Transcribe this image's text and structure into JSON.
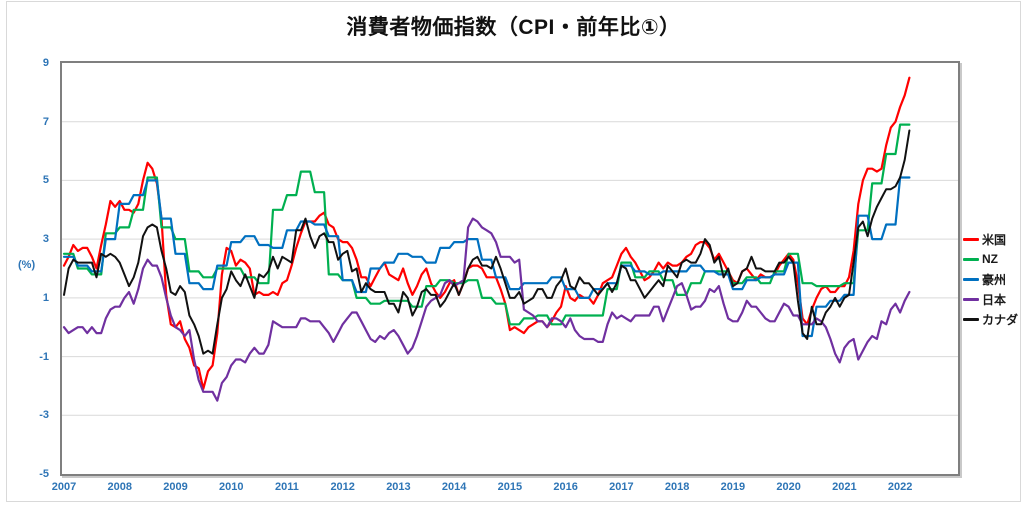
{
  "chart_data": {
    "type": "line",
    "title": "消費者物価指数（CPI・前年比①）",
    "ylabel": "(%)",
    "xlabel": "",
    "ylim": [
      -5,
      9
    ],
    "yticks": [
      9,
      7,
      5,
      3,
      1,
      -1,
      -3,
      -5
    ],
    "x_tick_years": [
      "2007",
      "2008",
      "2009",
      "2010",
      "2011",
      "2012",
      "2013",
      "2014",
      "2015",
      "2016",
      "2017",
      "2018",
      "2019",
      "2020",
      "2021",
      "2022"
    ],
    "x_range": "Jan 2007 - Mar 2022, one value per month (183 points per series)",
    "grid": true,
    "legend_position": "right",
    "axis_text_color": "#2e75b6",
    "gridline_color": "#d9d9d9",
    "plot_border_color": "#7f7f7f",
    "series": [
      {
        "name": "米国",
        "color": "#ff0000",
        "frequency": "monthly",
        "values": [
          2.1,
          2.4,
          2.8,
          2.6,
          2.7,
          2.7,
          2.4,
          2.0,
          2.8,
          3.5,
          4.3,
          4.1,
          4.3,
          4.0,
          4.0,
          3.9,
          4.2,
          5.0,
          5.6,
          5.4,
          4.9,
          3.7,
          1.1,
          0.1,
          0.0,
          0.2,
          -0.4,
          -0.7,
          -1.3,
          -1.4,
          -2.1,
          -1.5,
          -1.3,
          -0.2,
          1.8,
          2.7,
          2.6,
          2.1,
          2.3,
          2.2,
          2.0,
          1.1,
          1.2,
          1.1,
          1.1,
          1.2,
          1.1,
          1.5,
          1.6,
          2.1,
          2.7,
          3.2,
          3.6,
          3.6,
          3.6,
          3.8,
          3.9,
          3.5,
          3.4,
          3.0,
          2.9,
          2.9,
          2.7,
          2.3,
          1.7,
          1.7,
          1.4,
          1.7,
          2.0,
          2.2,
          1.8,
          1.7,
          1.6,
          2.0,
          1.5,
          1.1,
          1.4,
          1.8,
          2.0,
          1.5,
          1.2,
          1.0,
          1.2,
          1.5,
          1.6,
          1.1,
          1.5,
          2.0,
          2.1,
          2.1,
          2.0,
          1.7,
          1.7,
          1.7,
          1.3,
          0.8,
          -0.1,
          0.0,
          -0.1,
          -0.2,
          0.0,
          0.1,
          0.2,
          0.2,
          0.0,
          0.2,
          0.5,
          0.7,
          1.4,
          1.0,
          0.9,
          1.1,
          1.0,
          1.0,
          0.8,
          1.1,
          1.5,
          1.6,
          1.7,
          2.1,
          2.5,
          2.7,
          2.4,
          2.2,
          1.9,
          1.6,
          1.7,
          1.9,
          2.2,
          2.0,
          2.2,
          2.1,
          2.1,
          2.2,
          2.4,
          2.5,
          2.8,
          2.9,
          2.9,
          2.7,
          2.3,
          2.5,
          2.2,
          1.9,
          1.6,
          1.5,
          1.9,
          2.0,
          1.8,
          1.6,
          1.8,
          1.7,
          1.7,
          1.8,
          2.1,
          2.3,
          2.5,
          2.3,
          1.5,
          0.3,
          0.1,
          0.6,
          1.0,
          1.3,
          1.4,
          1.2,
          1.2,
          1.4,
          1.4,
          1.7,
          2.6,
          4.2,
          5.0,
          5.4,
          5.4,
          5.3,
          5.4,
          6.2,
          6.8,
          7.0,
          7.5,
          7.9,
          8.5
        ]
      },
      {
        "name": "NZ",
        "color": "#00b050",
        "frequency": "quarterly (each quarter value repeated for its 3 months)",
        "values": [
          2.5,
          2.5,
          2.5,
          2.0,
          2.0,
          2.0,
          1.8,
          1.8,
          1.8,
          3.2,
          3.2,
          3.2,
          3.4,
          3.4,
          3.4,
          4.0,
          4.0,
          4.0,
          5.1,
          5.1,
          5.1,
          3.4,
          3.4,
          3.4,
          3.0,
          3.0,
          3.0,
          1.9,
          1.9,
          1.9,
          1.7,
          1.7,
          1.7,
          2.0,
          2.0,
          2.0,
          2.0,
          2.0,
          2.0,
          1.7,
          1.7,
          1.7,
          1.5,
          1.5,
          1.5,
          4.0,
          4.0,
          4.0,
          4.5,
          4.5,
          4.5,
          5.3,
          5.3,
          5.3,
          4.6,
          4.6,
          4.6,
          1.8,
          1.8,
          1.8,
          1.6,
          1.6,
          1.6,
          1.0,
          1.0,
          1.0,
          0.8,
          0.8,
          0.8,
          0.9,
          0.9,
          0.9,
          0.9,
          0.9,
          0.9,
          0.7,
          0.7,
          0.7,
          1.4,
          1.4,
          1.4,
          1.6,
          1.6,
          1.6,
          1.5,
          1.5,
          1.5,
          1.6,
          1.6,
          1.6,
          1.0,
          1.0,
          1.0,
          0.8,
          0.8,
          0.8,
          0.1,
          0.1,
          0.1,
          0.3,
          0.3,
          0.3,
          0.4,
          0.4,
          0.4,
          0.1,
          0.1,
          0.1,
          0.4,
          0.4,
          0.4,
          0.4,
          0.4,
          0.4,
          0.4,
          0.4,
          0.4,
          1.3,
          1.3,
          1.3,
          2.2,
          2.2,
          2.2,
          1.7,
          1.7,
          1.7,
          1.9,
          1.9,
          1.9,
          1.6,
          1.6,
          1.6,
          1.1,
          1.1,
          1.1,
          1.5,
          1.5,
          1.5,
          1.9,
          1.9,
          1.9,
          1.9,
          1.9,
          1.9,
          1.5,
          1.5,
          1.5,
          1.7,
          1.7,
          1.7,
          1.5,
          1.5,
          1.5,
          1.9,
          1.9,
          1.9,
          2.5,
          2.5,
          2.5,
          1.5,
          1.5,
          1.5,
          1.4,
          1.4,
          1.4,
          1.4,
          1.4,
          1.4,
          1.5,
          1.5,
          1.5,
          3.3,
          3.3,
          3.3,
          4.9,
          4.9,
          4.9,
          5.9,
          5.9,
          5.9,
          6.9,
          6.9,
          6.9
        ]
      },
      {
        "name": "豪州",
        "color": "#0070c0",
        "frequency": "quarterly (each quarter value repeated for its 3 months)",
        "values": [
          2.4,
          2.4,
          2.4,
          2.1,
          2.1,
          2.1,
          1.9,
          1.9,
          1.9,
          3.0,
          3.0,
          3.0,
          4.2,
          4.2,
          4.2,
          4.5,
          4.5,
          4.5,
          5.0,
          5.0,
          5.0,
          3.7,
          3.7,
          3.7,
          2.5,
          2.5,
          2.5,
          1.5,
          1.5,
          1.5,
          1.3,
          1.3,
          1.3,
          2.1,
          2.1,
          2.1,
          2.9,
          2.9,
          2.9,
          3.1,
          3.1,
          3.1,
          2.8,
          2.8,
          2.8,
          2.7,
          2.7,
          2.7,
          3.3,
          3.3,
          3.3,
          3.6,
          3.6,
          3.6,
          3.5,
          3.5,
          3.5,
          3.1,
          3.1,
          3.1,
          1.6,
          1.6,
          1.6,
          1.2,
          1.2,
          1.2,
          2.0,
          2.0,
          2.0,
          2.2,
          2.2,
          2.2,
          2.5,
          2.5,
          2.5,
          2.4,
          2.4,
          2.4,
          2.2,
          2.2,
          2.2,
          2.7,
          2.7,
          2.7,
          2.9,
          2.9,
          2.9,
          3.0,
          3.0,
          3.0,
          2.3,
          2.3,
          2.3,
          1.7,
          1.7,
          1.7,
          1.3,
          1.3,
          1.3,
          1.5,
          1.5,
          1.5,
          1.5,
          1.5,
          1.5,
          1.7,
          1.7,
          1.7,
          1.3,
          1.3,
          1.3,
          1.0,
          1.0,
          1.0,
          1.3,
          1.3,
          1.3,
          1.5,
          1.5,
          1.5,
          2.1,
          2.1,
          2.1,
          1.9,
          1.9,
          1.9,
          1.8,
          1.8,
          1.8,
          1.9,
          1.9,
          1.9,
          1.9,
          1.9,
          1.9,
          2.1,
          2.1,
          2.1,
          1.9,
          1.9,
          1.9,
          1.8,
          1.8,
          1.8,
          1.3,
          1.3,
          1.3,
          1.6,
          1.6,
          1.6,
          1.7,
          1.7,
          1.7,
          1.8,
          1.8,
          1.8,
          2.2,
          2.2,
          2.2,
          -0.3,
          -0.3,
          -0.3,
          0.7,
          0.7,
          0.7,
          0.9,
          0.9,
          0.9,
          1.1,
          1.1,
          1.1,
          3.8,
          3.8,
          3.8,
          3.0,
          3.0,
          3.0,
          3.5,
          3.5,
          3.5,
          5.1,
          5.1,
          5.1
        ]
      },
      {
        "name": "日本",
        "color": "#7030a0",
        "frequency": "monthly",
        "values": [
          0.0,
          -0.2,
          -0.1,
          0.0,
          0.0,
          -0.2,
          0.0,
          -0.2,
          -0.2,
          0.3,
          0.6,
          0.7,
          0.7,
          1.0,
          1.2,
          0.8,
          1.3,
          2.0,
          2.3,
          2.1,
          2.1,
          1.7,
          1.0,
          0.4,
          0.0,
          -0.1,
          -0.3,
          -0.1,
          -1.1,
          -1.8,
          -2.2,
          -2.2,
          -2.2,
          -2.5,
          -1.9,
          -1.7,
          -1.3,
          -1.1,
          -1.1,
          -1.2,
          -0.9,
          -0.7,
          -0.9,
          -0.9,
          -0.6,
          0.2,
          0.1,
          0.0,
          0.0,
          0.0,
          0.0,
          0.3,
          0.3,
          0.2,
          0.2,
          0.2,
          0.0,
          -0.2,
          -0.5,
          -0.2,
          0.1,
          0.3,
          0.5,
          0.5,
          0.2,
          -0.1,
          -0.4,
          -0.5,
          -0.3,
          -0.4,
          -0.2,
          -0.1,
          -0.3,
          -0.6,
          -0.9,
          -0.7,
          -0.3,
          0.2,
          0.7,
          0.9,
          1.0,
          1.1,
          1.5,
          1.6,
          1.4,
          1.5,
          1.6,
          3.4,
          3.7,
          3.6,
          3.4,
          3.3,
          3.2,
          2.9,
          2.4,
          2.4,
          2.4,
          2.2,
          2.3,
          0.6,
          0.5,
          0.4,
          0.2,
          0.2,
          0.0,
          0.3,
          0.3,
          0.2,
          0.0,
          0.3,
          -0.1,
          -0.3,
          -0.4,
          -0.4,
          -0.4,
          -0.5,
          -0.5,
          0.1,
          0.5,
          0.3,
          0.4,
          0.3,
          0.2,
          0.4,
          0.4,
          0.4,
          0.4,
          0.7,
          0.7,
          0.2,
          0.6,
          1.0,
          1.4,
          1.5,
          1.1,
          0.6,
          0.7,
          0.7,
          0.9,
          1.3,
          1.2,
          1.4,
          0.8,
          0.3,
          0.2,
          0.2,
          0.5,
          0.9,
          0.7,
          0.7,
          0.5,
          0.3,
          0.2,
          0.2,
          0.5,
          0.8,
          0.7,
          0.4,
          0.4,
          0.1,
          0.1,
          0.1,
          0.3,
          0.2,
          0.0,
          -0.4,
          -0.9,
          -1.2,
          -0.7,
          -0.5,
          -0.4,
          -1.1,
          -0.8,
          -0.5,
          -0.3,
          -0.4,
          0.2,
          0.1,
          0.6,
          0.8,
          0.5,
          0.9,
          1.2
        ]
      },
      {
        "name": "カナダ",
        "color": "#111111",
        "frequency": "monthly",
        "values": [
          1.1,
          2.0,
          2.3,
          2.2,
          2.2,
          2.2,
          2.2,
          1.7,
          2.5,
          2.4,
          2.5,
          2.4,
          2.2,
          1.8,
          1.4,
          1.7,
          2.2,
          3.1,
          3.4,
          3.5,
          3.4,
          2.6,
          2.0,
          1.2,
          1.1,
          1.4,
          1.2,
          0.4,
          0.1,
          -0.3,
          -0.9,
          -0.8,
          -0.9,
          0.1,
          1.0,
          1.3,
          1.9,
          1.6,
          1.4,
          1.8,
          1.4,
          1.0,
          1.8,
          1.7,
          1.9,
          2.4,
          2.0,
          2.4,
          2.3,
          2.2,
          3.3,
          3.3,
          3.7,
          3.1,
          2.7,
          3.1,
          3.2,
          2.9,
          2.9,
          2.3,
          2.5,
          2.6,
          1.9,
          2.0,
          1.2,
          1.5,
          1.3,
          1.2,
          1.2,
          1.2,
          0.8,
          0.8,
          0.5,
          1.2,
          1.0,
          0.4,
          0.7,
          1.2,
          1.3,
          1.1,
          1.1,
          0.7,
          0.9,
          1.2,
          1.5,
          1.1,
          1.5,
          2.0,
          2.3,
          2.4,
          2.1,
          2.1,
          2.0,
          2.4,
          2.0,
          1.5,
          1.0,
          1.0,
          1.2,
          0.8,
          0.9,
          1.0,
          1.3,
          1.3,
          1.0,
          1.0,
          1.4,
          1.6,
          2.0,
          1.4,
          1.3,
          1.7,
          1.5,
          1.5,
          1.3,
          1.1,
          1.3,
          1.5,
          1.2,
          1.5,
          2.1,
          2.0,
          1.6,
          1.6,
          1.3,
          1.0,
          1.2,
          1.4,
          1.6,
          1.4,
          2.1,
          1.9,
          1.7,
          2.2,
          2.3,
          2.2,
          2.2,
          2.5,
          3.0,
          2.8,
          2.2,
          2.4,
          1.7,
          2.0,
          1.4,
          1.5,
          1.9,
          2.0,
          2.4,
          2.0,
          2.0,
          1.9,
          1.9,
          1.9,
          2.2,
          2.2,
          2.4,
          2.2,
          0.9,
          -0.2,
          -0.4,
          0.7,
          0.1,
          0.1,
          0.5,
          0.7,
          1.0,
          0.7,
          1.0,
          1.1,
          2.2,
          3.4,
          3.6,
          3.1,
          3.7,
          4.1,
          4.4,
          4.7,
          4.7,
          4.8,
          5.1,
          5.7,
          6.7
        ]
      }
    ],
    "legend": [
      "米国",
      "NZ",
      "豪州",
      "日本",
      "カナダ"
    ]
  }
}
